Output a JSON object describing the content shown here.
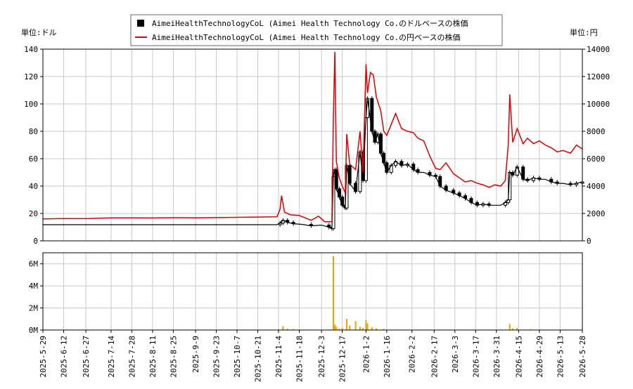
{
  "chart_data": {
    "type": "candlestick+line+bar",
    "legend": {
      "position": "top-center",
      "entries": [
        {
          "label": "AimeiHealthTechnologyCoL (Aimei Health Technology Co.のドルベースの株価",
          "color": "#000000",
          "marker": "square"
        },
        {
          "label": "AimeiHealthTechnologyCoL (Aimei Health Technology Co.の円ベースの株価",
          "color": "#dd0000",
          "marker": "line"
        }
      ]
    },
    "left_axis_unit": "単位:ドル",
    "right_axis_unit": "単位:円",
    "y_left": {
      "min": 0,
      "max": 140,
      "ticks": [
        0,
        20,
        40,
        60,
        80,
        100,
        120,
        140
      ]
    },
    "y_right": {
      "min": 0,
      "max": 14000,
      "ticks": [
        "0",
        "2000",
        "4000",
        "6000",
        "8000",
        "10000",
        "12000",
        "14000"
      ]
    },
    "volume_axis": {
      "min": 0,
      "max": 7000000,
      "ticks": [
        {
          "v": 0,
          "label": "0M"
        },
        {
          "v": 2000000,
          "label": "2M"
        },
        {
          "v": 4000000,
          "label": "4M"
        },
        {
          "v": 6000000,
          "label": "6M"
        }
      ]
    },
    "x_range": [
      "2025-05-29",
      "2026-05-28"
    ],
    "x_ticks": [
      "2025-5-29",
      "2025-6-12",
      "2025-6-27",
      "2025-7-14",
      "2025-7-28",
      "2025-8-11",
      "2025-8-25",
      "2025-9-9",
      "2025-9-23",
      "2025-10-7",
      "2025-10-21",
      "2025-11-4",
      "2025-11-18",
      "2025-12-3",
      "2025-12-17",
      "2026-1-2",
      "2026-1-16",
      "2026-2-2",
      "2026-2-17",
      "2026-3-3",
      "2026-3-17",
      "2026-3-31",
      "2026-4-15",
      "2026-4-29",
      "2026-5-13",
      "2026-5-28"
    ],
    "grid": true,
    "usd_close": [
      [
        "2025-05-29",
        11.8
      ],
      [
        "2025-11-03",
        11.8
      ],
      [
        "2025-11-05",
        13
      ],
      [
        "2025-11-07",
        15
      ],
      [
        "2025-11-10",
        13.5
      ],
      [
        "2025-11-14",
        12.5
      ],
      [
        "2025-11-20",
        12
      ],
      [
        "2025-11-26",
        11
      ],
      [
        "2025-12-03",
        11.5
      ],
      [
        "2025-12-08",
        10
      ],
      [
        "2025-12-10",
        9
      ],
      [
        "2025-12-11",
        47
      ],
      [
        "2025-12-12",
        52
      ],
      [
        "2025-12-13",
        38
      ],
      [
        "2025-12-15",
        32
      ],
      [
        "2025-12-17",
        26
      ],
      [
        "2025-12-19",
        24
      ],
      [
        "2025-12-20",
        55
      ],
      [
        "2025-12-22",
        42
      ],
      [
        "2025-12-26",
        36
      ],
      [
        "2025-12-29",
        65
      ],
      [
        "2025-12-31",
        44
      ],
      [
        "2026-01-02",
        90
      ],
      [
        "2026-01-03",
        104
      ],
      [
        "2026-01-06",
        80
      ],
      [
        "2026-01-08",
        72
      ],
      [
        "2026-01-10",
        78
      ],
      [
        "2026-01-12",
        64
      ],
      [
        "2026-01-14",
        57
      ],
      [
        "2026-01-16",
        50
      ],
      [
        "2026-01-19",
        55
      ],
      [
        "2026-01-22",
        58
      ],
      [
        "2026-01-26",
        55
      ],
      [
        "2026-01-30",
        56
      ],
      [
        "2026-02-03",
        52
      ],
      [
        "2026-02-06",
        50
      ],
      [
        "2026-02-10",
        50
      ],
      [
        "2026-02-14",
        48
      ],
      [
        "2026-02-18",
        47
      ],
      [
        "2026-02-21",
        40
      ],
      [
        "2026-02-25",
        37
      ],
      [
        "2026-03-02",
        35
      ],
      [
        "2026-03-06",
        33
      ],
      [
        "2026-03-10",
        31
      ],
      [
        "2026-03-14",
        28
      ],
      [
        "2026-03-18",
        26
      ],
      [
        "2026-03-22",
        27
      ],
      [
        "2026-03-26",
        26
      ],
      [
        "2026-03-30",
        26
      ],
      [
        "2026-04-03",
        26
      ],
      [
        "2026-04-06",
        28
      ],
      [
        "2026-04-08",
        30
      ],
      [
        "2026-04-09",
        50
      ],
      [
        "2026-04-11",
        48
      ],
      [
        "2026-04-14",
        54
      ],
      [
        "2026-04-18",
        45
      ],
      [
        "2026-04-21",
        44
      ],
      [
        "2026-04-25",
        46
      ],
      [
        "2026-04-29",
        45
      ],
      [
        "2026-05-03",
        45
      ],
      [
        "2026-05-07",
        43
      ],
      [
        "2026-05-11",
        42
      ],
      [
        "2026-05-15",
        42
      ],
      [
        "2026-05-20",
        41
      ],
      [
        "2026-05-24",
        42
      ],
      [
        "2026-05-28",
        43
      ]
    ],
    "jpy_close": [
      [
        "2025-05-29",
        1600
      ],
      [
        "2025-06-12",
        1630
      ],
      [
        "2025-06-27",
        1620
      ],
      [
        "2025-07-14",
        1680
      ],
      [
        "2025-07-28",
        1680
      ],
      [
        "2025-08-11",
        1670
      ],
      [
        "2025-08-25",
        1690
      ],
      [
        "2025-09-09",
        1680
      ],
      [
        "2025-09-23",
        1700
      ],
      [
        "2025-10-07",
        1720
      ],
      [
        "2025-10-21",
        1740
      ],
      [
        "2025-11-03",
        1760
      ],
      [
        "2025-11-05",
        2300
      ],
      [
        "2025-11-06",
        3300
      ],
      [
        "2025-11-08",
        2100
      ],
      [
        "2025-11-12",
        1900
      ],
      [
        "2025-11-18",
        1850
      ],
      [
        "2025-11-26",
        1500
      ],
      [
        "2025-12-01",
        1800
      ],
      [
        "2025-12-05",
        1400
      ],
      [
        "2025-12-10",
        1400
      ],
      [
        "2025-12-11",
        9000
      ],
      [
        "2025-12-12",
        13800
      ],
      [
        "2025-12-13",
        5800
      ],
      [
        "2025-12-15",
        4600
      ],
      [
        "2025-12-17",
        4000
      ],
      [
        "2025-12-19",
        3500
      ],
      [
        "2025-12-20",
        7800
      ],
      [
        "2025-12-22",
        5600
      ],
      [
        "2025-12-26",
        5200
      ],
      [
        "2025-12-29",
        8000
      ],
      [
        "2025-12-31",
        5000
      ],
      [
        "2026-01-02",
        12900
      ],
      [
        "2026-01-03",
        10800
      ],
      [
        "2026-01-05",
        12300
      ],
      [
        "2026-01-07",
        12100
      ],
      [
        "2026-01-09",
        10500
      ],
      [
        "2026-01-12",
        9500
      ],
      [
        "2026-01-14",
        8000
      ],
      [
        "2026-01-16",
        7700
      ],
      [
        "2026-01-19",
        8500
      ],
      [
        "2026-01-22",
        9300
      ],
      [
        "2026-01-26",
        8200
      ],
      [
        "2026-01-30",
        8000
      ],
      [
        "2026-02-03",
        7900
      ],
      [
        "2026-02-06",
        7500
      ],
      [
        "2026-02-10",
        7300
      ],
      [
        "2026-02-14",
        6200
      ],
      [
        "2026-02-18",
        5300
      ],
      [
        "2026-02-21",
        5200
      ],
      [
        "2026-02-25",
        5700
      ],
      [
        "2026-03-02",
        4900
      ],
      [
        "2026-03-06",
        4600
      ],
      [
        "2026-03-10",
        4300
      ],
      [
        "2026-03-14",
        4400
      ],
      [
        "2026-03-18",
        4200
      ],
      [
        "2026-03-22",
        4100
      ],
      [
        "2026-03-26",
        3900
      ],
      [
        "2026-03-30",
        4100
      ],
      [
        "2026-04-03",
        4000
      ],
      [
        "2026-04-06",
        4400
      ],
      [
        "2026-04-08",
        7000
      ],
      [
        "2026-04-09",
        10700
      ],
      [
        "2026-04-11",
        7200
      ],
      [
        "2026-04-14",
        8200
      ],
      [
        "2026-04-18",
        7100
      ],
      [
        "2026-04-21",
        7500
      ],
      [
        "2026-04-25",
        7100
      ],
      [
        "2026-04-29",
        7300
      ],
      [
        "2026-05-03",
        7000
      ],
      [
        "2026-05-07",
        6800
      ],
      [
        "2026-05-11",
        6500
      ],
      [
        "2026-05-15",
        6600
      ],
      [
        "2026-05-20",
        6400
      ],
      [
        "2026-05-24",
        7000
      ],
      [
        "2026-05-28",
        6700
      ]
    ],
    "volume": [
      [
        "2025-11-04",
        80000
      ],
      [
        "2025-11-07",
        350000
      ],
      [
        "2025-11-10",
        120000
      ],
      [
        "2025-11-14",
        90000
      ],
      [
        "2025-12-09",
        60000
      ],
      [
        "2025-12-11",
        6700000
      ],
      [
        "2025-12-12",
        500000
      ],
      [
        "2025-12-13",
        300000
      ],
      [
        "2025-12-15",
        120000
      ],
      [
        "2025-12-17",
        200000
      ],
      [
        "2025-12-20",
        1000000
      ],
      [
        "2025-12-22",
        400000
      ],
      [
        "2025-12-26",
        800000
      ],
      [
        "2025-12-29",
        300000
      ],
      [
        "2025-12-31",
        200000
      ],
      [
        "2026-01-02",
        900000
      ],
      [
        "2026-01-03",
        600000
      ],
      [
        "2026-01-06",
        250000
      ],
      [
        "2026-01-09",
        150000
      ],
      [
        "2026-01-14",
        100000
      ],
      [
        "2026-04-09",
        550000
      ],
      [
        "2026-04-11",
        150000
      ],
      [
        "2026-04-14",
        200000
      ],
      [
        "2026-04-23",
        80000
      ]
    ]
  }
}
